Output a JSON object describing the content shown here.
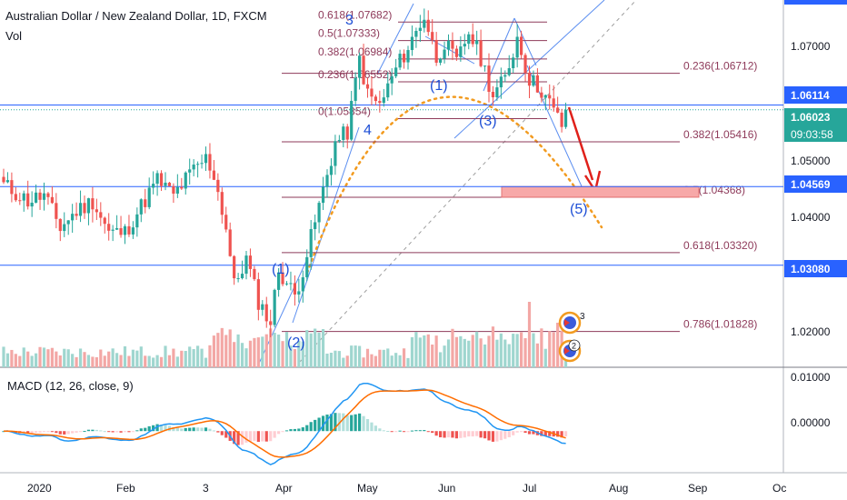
{
  "header": {
    "symbol": "Australian Dollar / New Zealand Dollar, 1D, FXCM",
    "volume_label": "Vol"
  },
  "macd": {
    "label": "MACD (12, 26, close, 9)",
    "ticks": [
      "0.01000",
      "0.00000"
    ]
  },
  "price_axis": {
    "ticks": [
      "1.07000",
      "1.05000",
      "1.04000",
      "1.02000"
    ]
  },
  "price_badges": {
    "blue_upper": "1.06114",
    "last_price": "1.06023",
    "countdown": "09:03:58",
    "blue_mid": "1.04569",
    "blue_lower": "1.03080"
  },
  "time_axis": {
    "ticks": [
      "2020",
      "Feb",
      "3",
      "Apr",
      "May",
      "Jun",
      "Jul",
      "Aug",
      "Sep",
      "Oc"
    ]
  },
  "fib_levels": [
    {
      "label": "0.236(1.06712)"
    },
    {
      "label": "0.382(1.05416)"
    },
    {
      "label": "0.5(1.04368)"
    },
    {
      "label": "0.618(1.03320)"
    },
    {
      "label": "0.786(1.01828)"
    }
  ],
  "fib_upper_levels": [
    {
      "label": "0.618(1.07682)"
    },
    {
      "label": "0.5(1.07333)"
    },
    {
      "label": "0.382(1.06984)"
    },
    {
      "label": "0.236(1.06552)"
    },
    {
      "label": "0(1.05854)"
    }
  ],
  "wave_labels": [
    "(1)",
    "(2)",
    "3",
    "4",
    "(1)",
    "(3)",
    "(5)"
  ],
  "event_badges": [
    "3",
    "2"
  ],
  "colors": {
    "up": "#26a69a",
    "down": "#ef5350",
    "fib": "#8e3a5a",
    "blue": "#2962ff",
    "orange": "#f29b20",
    "red_arrow": "#e0201a",
    "macd_line": "#2196f3",
    "signal_line": "#ff6d00"
  },
  "chart_data": {
    "type": "candlestick",
    "title": "Australian Dollar / New Zealand Dollar, 1D, FXCM",
    "ylim": [
      1.0115,
      1.081
    ],
    "x_ticks": [
      "2020",
      "Feb",
      "3",
      "Apr",
      "May",
      "Jun",
      "Jul",
      "Aug",
      "Sep",
      "Oc"
    ],
    "y_ticks": [
      1.07,
      1.05,
      1.04,
      1.02
    ],
    "anchors": [
      {
        "t": 0,
        "c": 1.046
      },
      {
        "t": 6,
        "c": 1.043
      },
      {
        "t": 10,
        "c": 1.044
      },
      {
        "t": 14,
        "c": 1.038
      },
      {
        "t": 18,
        "c": 1.041
      },
      {
        "t": 22,
        "c": 1.043
      },
      {
        "t": 26,
        "c": 1.037
      },
      {
        "t": 30,
        "c": 1.037
      },
      {
        "t": 34,
        "c": 1.042
      },
      {
        "t": 38,
        "c": 1.047
      },
      {
        "t": 42,
        "c": 1.044
      },
      {
        "t": 46,
        "c": 1.048
      },
      {
        "t": 50,
        "c": 1.051
      },
      {
        "t": 52,
        "c": 1.048
      },
      {
        "t": 55,
        "c": 1.038
      },
      {
        "t": 57,
        "c": 1.027
      },
      {
        "t": 60,
        "c": 1.032
      },
      {
        "t": 63,
        "c": 1.024
      },
      {
        "t": 66,
        "c": 1.02
      },
      {
        "t": 68,
        "c": 1.03
      },
      {
        "t": 72,
        "c": 1.025
      },
      {
        "t": 74,
        "c": 1.03
      },
      {
        "t": 78,
        "c": 1.042
      },
      {
        "t": 82,
        "c": 1.054
      },
      {
        "t": 85,
        "c": 1.056
      },
      {
        "t": 88,
        "c": 1.07
      },
      {
        "t": 90,
        "c": 1.063
      },
      {
        "t": 93,
        "c": 1.061
      },
      {
        "t": 97,
        "c": 1.068
      },
      {
        "t": 100,
        "c": 1.072
      },
      {
        "t": 104,
        "c": 1.078
      },
      {
        "t": 107,
        "c": 1.07
      },
      {
        "t": 109,
        "c": 1.073
      },
      {
        "t": 112,
        "c": 1.069
      },
      {
        "t": 115,
        "c": 1.075
      },
      {
        "t": 118,
        "c": 1.07
      },
      {
        "t": 121,
        "c": 1.063
      },
      {
        "t": 124,
        "c": 1.066
      },
      {
        "t": 127,
        "c": 1.074
      },
      {
        "t": 130,
        "c": 1.066
      },
      {
        "t": 133,
        "c": 1.064
      },
      {
        "t": 136,
        "c": 1.06
      },
      {
        "t": 139,
        "c": 1.056
      }
    ],
    "last_bar": 139,
    "last_close": 1.06023,
    "macd": {
      "ylim": [
        -0.0075,
        0.0115
      ]
    },
    "fib_levels": [
      1.06712,
      1.05416,
      1.04368,
      1.0332,
      1.01828
    ],
    "fib_upper_levels": [
      1.07682,
      1.07333,
      1.06984,
      1.06552,
      1.05854
    ],
    "blue_levels": [
      1.06114,
      1.04569,
      1.0308
    ],
    "target_zone": [
      1.04368,
      1.04569
    ]
  }
}
